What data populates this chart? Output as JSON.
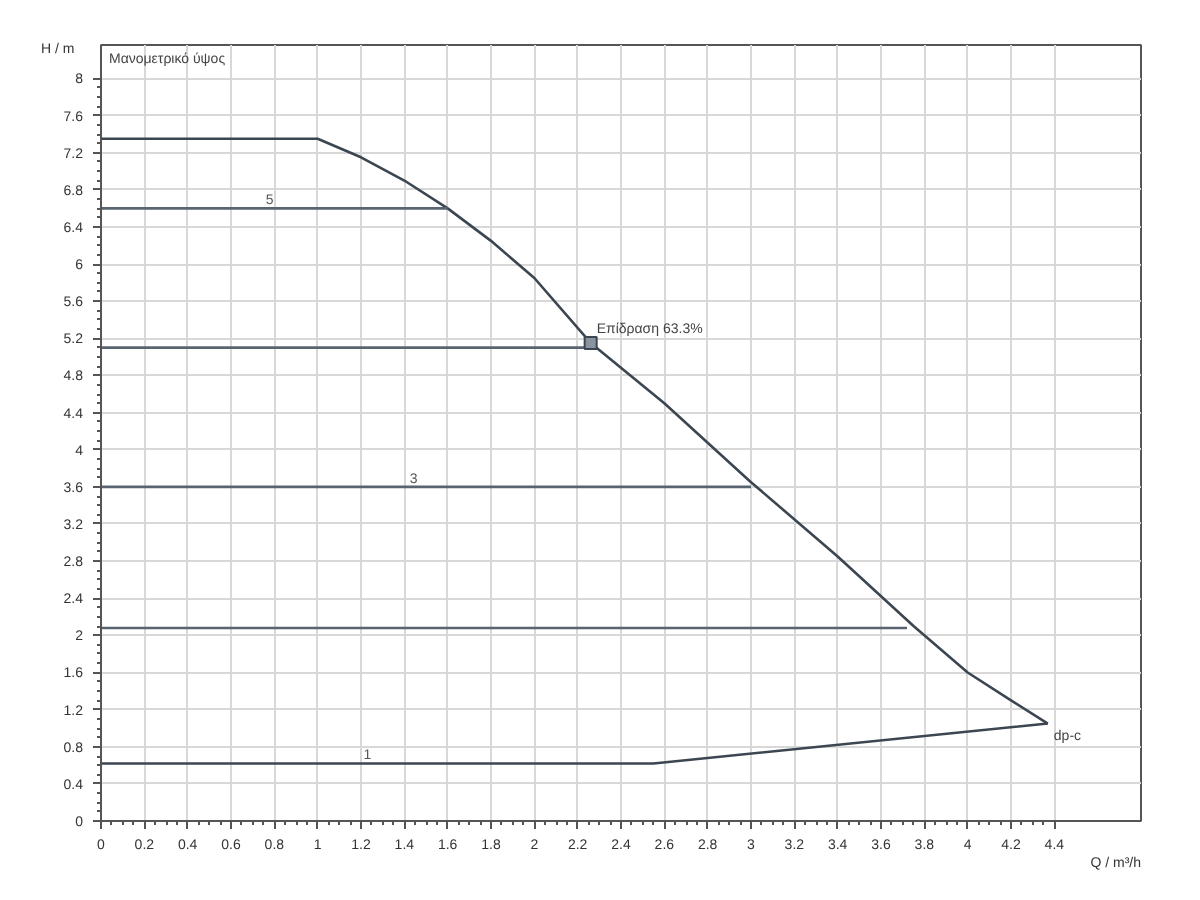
{
  "chart_data": {
    "type": "line",
    "xlabel": "Q / m³/h",
    "ylabel": "H / m",
    "xlim": [
      0,
      4.8
    ],
    "ylim": [
      0,
      8.36
    ],
    "xticks": [
      0,
      0.2,
      0.4,
      0.6,
      0.8,
      1,
      1.2,
      1.4,
      1.6,
      1.8,
      2,
      2.2,
      2.4,
      2.6,
      2.8,
      3,
      3.2,
      3.4,
      3.6,
      3.8,
      4,
      4.2,
      4.4
    ],
    "yticks": [
      0,
      0.4,
      0.8,
      1.2,
      1.6,
      2,
      2.4,
      2.8,
      3.2,
      3.6,
      4,
      4.4,
      4.8,
      5.2,
      5.6,
      6,
      6.4,
      6.8,
      7.2,
      7.6,
      8
    ],
    "grid": true,
    "marker": "none",
    "line_style": "solid",
    "series": [
      {
        "color": "#3c4650",
        "x": [
          0,
          1.0,
          1.2,
          1.4,
          1.6,
          1.8,
          2.0,
          2.26,
          2.6,
          3.0,
          3.4,
          3.75,
          4.0,
          4.2,
          4.37
        ],
        "values": [
          7.35,
          7.35,
          7.15,
          6.9,
          6.6,
          6.25,
          5.85,
          5.15,
          4.5,
          3.65,
          2.85,
          2.1,
          1.6,
          1.3,
          1.05
        ]
      },
      {
        "name": "5",
        "color": "#5a6470",
        "x": [
          0,
          1.6
        ],
        "values": [
          6.6,
          6.6
        ]
      },
      {
        "color": "#5a6470",
        "x": [
          0,
          2.27
        ],
        "values": [
          5.1,
          5.1
        ]
      },
      {
        "name": "3",
        "color": "#5a6470",
        "x": [
          0,
          3.0
        ],
        "values": [
          3.6,
          3.6
        ]
      },
      {
        "color": "#5a6470",
        "x": [
          0,
          3.72
        ],
        "values": [
          2.08,
          2.08
        ]
      },
      {
        "name": "1",
        "color": "#3c4650",
        "x": [
          0,
          2.55,
          4.37
        ],
        "values": [
          0.62,
          0.62,
          1.05
        ]
      },
      {
        "type": "scatter",
        "marker": "square",
        "color": "#3c4650",
        "x": [
          2.26
        ],
        "values": [
          5.15
        ]
      }
    ],
    "annotations": [
      "Μανομετρικό ύψος",
      {
        "text": "Επίδραση  63.3%",
        "x": 2.26,
        "y": 5.15
      },
      {
        "text": "dp-c",
        "x": 4.37,
        "y": 1.05
      }
    ]
  }
}
